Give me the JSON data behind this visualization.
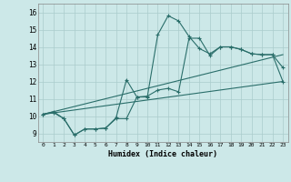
{
  "xlabel": "Humidex (Indice chaleur)",
  "xlim": [
    -0.5,
    23.5
  ],
  "ylim": [
    8.5,
    16.5
  ],
  "xticks": [
    0,
    1,
    2,
    3,
    4,
    5,
    6,
    7,
    8,
    9,
    10,
    11,
    12,
    13,
    14,
    15,
    16,
    17,
    18,
    19,
    20,
    21,
    22,
    23
  ],
  "yticks": [
    9,
    10,
    11,
    12,
    13,
    14,
    15,
    16
  ],
  "background_color": "#cce8e8",
  "grid_color": "#aacccc",
  "line_color": "#2a6e6a",
  "line1_y": [
    10.1,
    10.2,
    9.85,
    8.9,
    9.25,
    9.25,
    9.3,
    9.9,
    12.1,
    11.1,
    11.1,
    14.7,
    15.8,
    15.5,
    14.6,
    13.9,
    13.6,
    14.0,
    14.0,
    13.85,
    13.6,
    13.55,
    13.55,
    12.8
  ],
  "line2_y": [
    10.1,
    10.25,
    9.85,
    8.9,
    9.25,
    9.25,
    9.3,
    9.85,
    9.85,
    11.1,
    11.15,
    11.5,
    11.6,
    11.4,
    14.5,
    14.5,
    13.5,
    14.0,
    14.0,
    13.85,
    13.6,
    13.55,
    13.55,
    12.0
  ],
  "diag_upper_y0": 10.1,
  "diag_upper_y1": 13.55,
  "diag_lower_y0": 10.1,
  "diag_lower_y1": 12.0,
  "font_family": "monospace"
}
